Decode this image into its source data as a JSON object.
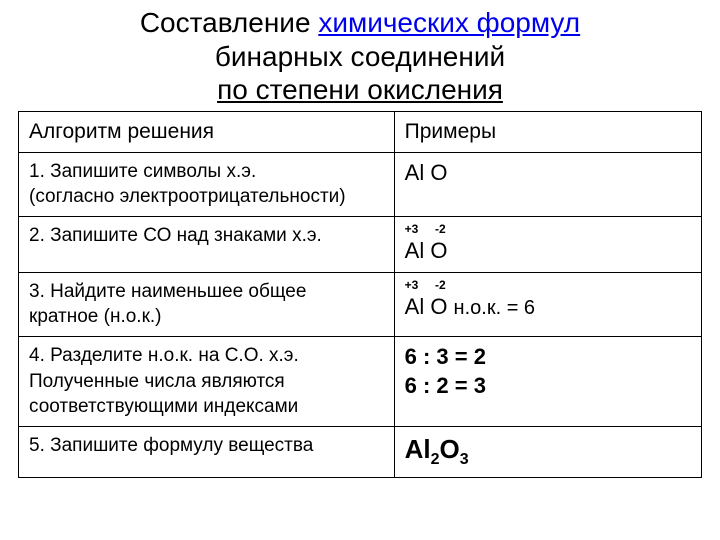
{
  "title": {
    "pre": "Составление ",
    "linked": "химических формул",
    "line2": "бинарных соединений",
    "line3": "по степени окисления"
  },
  "table": {
    "header_algo": "Алгоритм решения",
    "header_ex": "Примеры",
    "rows": [
      {
        "algo_l1": "1. Запишите символы х.э.",
        "algo_l2": "(согласно электроотрицательности)",
        "ex_main": "Al O"
      },
      {
        "algo_l1": "2. Запишите СО над знаками х.э.",
        "ox": "+3     -2",
        "ex_main": "Al  O"
      },
      {
        "algo_l1": "3. Найдите наименьшее общее",
        "algo_l2": "кратное (н.о.к.)",
        "ox": "+3     -2",
        "ex_main": "Al  O  ",
        "ex_nok": "н.о.к. = 6"
      },
      {
        "algo_l1": "4. Разделите н.о.к. на С.О. х.э.",
        "algo_l2": "Полученные числа являются",
        "algo_l3": "соответствующими индексами",
        "ex_l1": "6 : 3 = 2",
        "ex_l2": "6 : 2 = 3"
      },
      {
        "algo_l1": "5. Запишите формулу вещества",
        "formula_p1": "Al",
        "formula_s1": "2",
        "formula_p2": "O",
        "formula_s2": "3"
      }
    ]
  },
  "style": {
    "link_color": "#0000ee",
    "border_color": "#000000",
    "bg": "#ffffff",
    "text_color": "#000000",
    "title_fontsize": 28,
    "header_fontsize": 21,
    "algo_fontsize": 19,
    "ex_fontsize": 22,
    "ox_fontsize": 12,
    "formula_fontsize": 26,
    "sub_fontsize": 16,
    "col_algo_width": "55%",
    "col_ex_width": "45%"
  }
}
